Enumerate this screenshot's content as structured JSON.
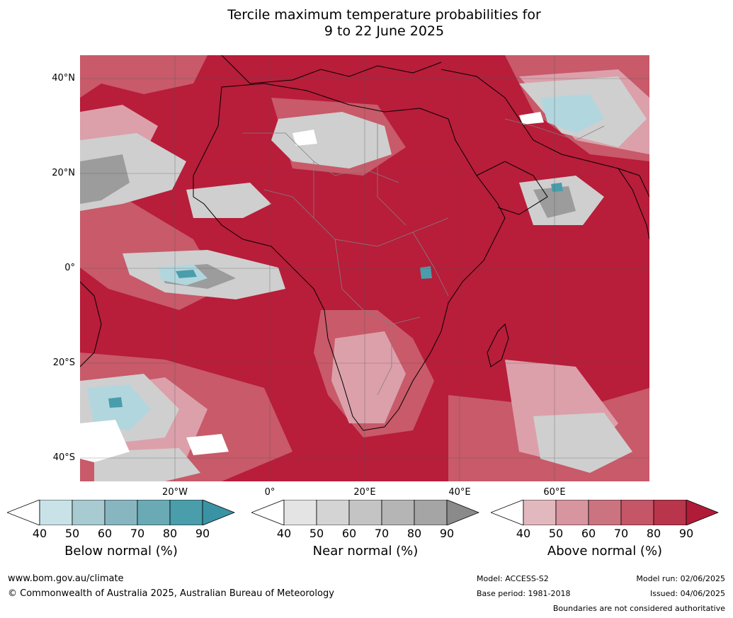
{
  "title_line1": "Tercile maximum temperature probabilities for",
  "title_line2": "9 to 22 June 2025",
  "lat_labels": [
    "40°N",
    "20°N",
    "0°",
    "20°S",
    "40°S"
  ],
  "lon_labels": [
    "20°W",
    "0°",
    "20°E",
    "40°E",
    "60°E"
  ],
  "colorbars": [
    {
      "label": "Below normal (%)",
      "ticks": [
        "40",
        "50",
        "60",
        "70",
        "80",
        "90"
      ],
      "colors": [
        "#c9e2e8",
        "#a8cad1",
        "#88b6c0",
        "#6aaab5",
        "#4a9dab"
      ],
      "extend_color": "#3a93a4"
    },
    {
      "label": "Near normal (%)",
      "ticks": [
        "40",
        "50",
        "60",
        "70",
        "80",
        "90"
      ],
      "colors": [
        "#e4e4e4",
        "#d4d4d4",
        "#c4c4c4",
        "#b5b5b5",
        "#a5a5a5"
      ],
      "extend_color": "#8a8a8a"
    },
    {
      "label": "Above normal (%)",
      "ticks": [
        "40",
        "50",
        "60",
        "70",
        "80",
        "90"
      ],
      "colors": [
        "#e2b8bf",
        "#d6959f",
        "#cc7380",
        "#c45667",
        "#b8354c"
      ],
      "extend_color": "#b01c38"
    }
  ],
  "footer": {
    "website": "www.bom.gov.au/climate",
    "copyright": "© Commonwealth of Australia 2025, Australian Bureau of Meteorology",
    "model": "Model: ACCESS-S2",
    "base_period": "Base period: 1981-2018",
    "model_run": "Model run: 02/06/2025",
    "issued": "Issued: 04/06/2025",
    "disclaimer": "Boundaries are not considered authoritative"
  }
}
